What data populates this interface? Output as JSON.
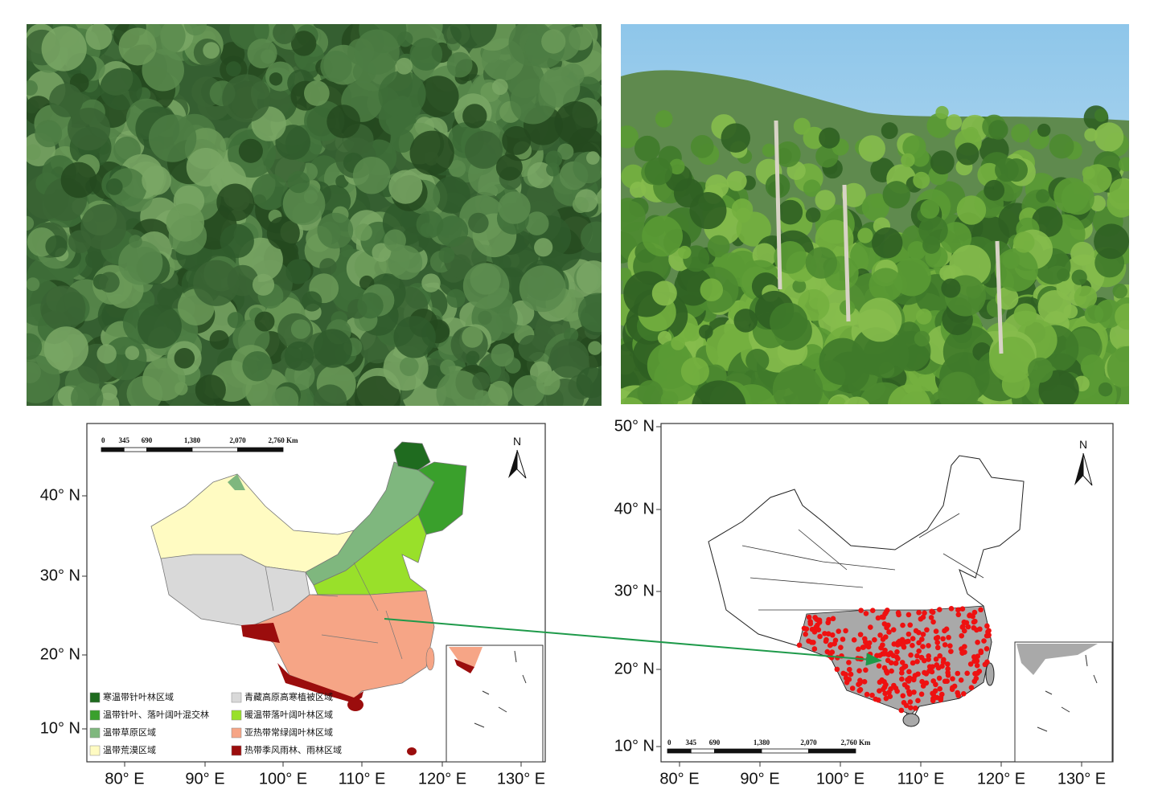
{
  "map_left": {
    "scale_bar": [
      "0",
      "345",
      "690",
      "1,380",
      "2,070",
      "2,760 Km"
    ],
    "north": "N",
    "y_labels": [
      "40° N",
      "30° N",
      "20° N",
      "10° N"
    ],
    "x_labels": [
      "80° E",
      "90° E",
      "100° E",
      "110° E",
      "120° E",
      "130° E"
    ],
    "legend": [
      "寒温带针叶林区域",
      "温带针叶、落叶阔叶混交林",
      "温带草原区域",
      "温带荒漠区域",
      "青藏高原高寒植被区域",
      "暖温带落叶阔叶林区域",
      "亚热带常绿阔叶林区域",
      "热带季风雨林、雨林区域"
    ]
  },
  "map_right": {
    "scale_bar": [
      "0",
      "345",
      "690",
      "1,380",
      "2,070",
      "2,760 Km"
    ],
    "north": "N",
    "y_labels": [
      "50° N",
      "40° N",
      "30° N",
      "20° N",
      "10° N"
    ],
    "x_labels": [
      "80° E",
      "90° E",
      "100° E",
      "110° E",
      "120° E",
      "130° E"
    ]
  }
}
